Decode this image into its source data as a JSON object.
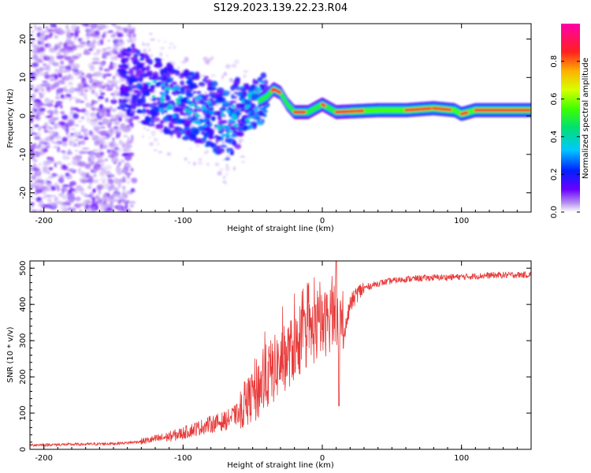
{
  "title": "S129.2023.139.22.23.R04",
  "chart_data": [
    {
      "type": "heatmap",
      "xlabel": "Height of straight line (km)",
      "ylabel": "Frequency (Hz)",
      "xlim": [
        -210,
        150
      ],
      "ylim": [
        -25,
        24
      ],
      "xticks": [
        -200,
        -100,
        0,
        100
      ],
      "yticks": [
        -20,
        -10,
        0,
        10,
        20
      ],
      "colorbar": {
        "label": "Normalized spectral amplitude",
        "range": [
          0.0,
          1.0
        ],
        "ticks": [
          0.0,
          0.2,
          0.4,
          0.6,
          0.8
        ],
        "tick_labels": [
          "0.0",
          "0.2",
          "0.4",
          "0.6",
          "0.8"
        ],
        "colormap": "rainbow (white-purple-blue-cyan-green-yellow-orange-red-magenta)"
      },
      "ridge_center_hz": [
        [
          -120,
          6
        ],
        [
          -100,
          3
        ],
        [
          -80,
          1
        ],
        [
          -70,
          -3
        ],
        [
          -60,
          1
        ],
        [
          -50,
          3
        ],
        [
          -40,
          5
        ],
        [
          -35,
          7
        ],
        [
          -30,
          6
        ],
        [
          -25,
          3
        ],
        [
          -20,
          1
        ],
        [
          -10,
          1
        ],
        [
          0,
          3
        ],
        [
          10,
          1
        ],
        [
          40,
          1.5
        ],
        [
          60,
          1.5
        ],
        [
          80,
          2
        ],
        [
          95,
          1.5
        ],
        [
          100,
          0.5
        ],
        [
          110,
          1.5
        ],
        [
          150,
          1.5
        ]
      ]
    },
    {
      "type": "line",
      "xlabel": "Height of straight line (km)",
      "ylabel": "SNR (10 * v/v)",
      "xlim": [
        -210,
        150
      ],
      "ylim": [
        0,
        520
      ],
      "xticks": [
        -200,
        -100,
        0,
        100
      ],
      "yticks": [
        0,
        100,
        200,
        300,
        400,
        500
      ],
      "series": [
        {
          "name": "SNR",
          "color": "#e83a3a",
          "points": [
            [
              -210,
              12
            ],
            [
              -190,
              13
            ],
            [
              -170,
              14
            ],
            [
              -150,
              16
            ],
            [
              -140,
              18
            ],
            [
              -130,
              22
            ],
            [
              -120,
              28
            ],
            [
              -110,
              35
            ],
            [
              -100,
              45
            ],
            [
              -90,
              58
            ],
            [
              -80,
              70
            ],
            [
              -70,
              78
            ],
            [
              -60,
              100
            ],
            [
              -50,
              140
            ],
            [
              -40,
              190
            ],
            [
              -30,
              230
            ],
            [
              -20,
              270
            ],
            [
              -10,
              310
            ],
            [
              0,
              330
            ],
            [
              5,
              350
            ],
            [
              10,
              380
            ],
            [
              15,
              300
            ],
            [
              20,
              400
            ],
            [
              25,
              430
            ],
            [
              30,
              445
            ],
            [
              40,
              458
            ],
            [
              50,
              465
            ],
            [
              60,
              470
            ],
            [
              70,
              472
            ],
            [
              80,
              474
            ],
            [
              90,
              475
            ],
            [
              100,
              476
            ],
            [
              110,
              478
            ],
            [
              120,
              480
            ],
            [
              130,
              481
            ],
            [
              150,
              482
            ]
          ]
        }
      ]
    }
  ]
}
